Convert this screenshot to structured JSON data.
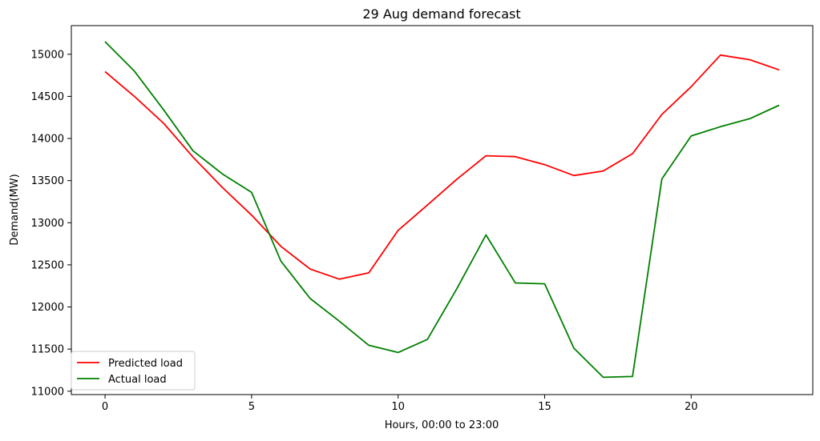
{
  "chart_data": {
    "type": "line",
    "title": "29 Aug demand forecast",
    "xlabel": "Hours, 00:00 to 23:00",
    "ylabel": "Demand(MW)",
    "xlim": [
      -1.15,
      24.15
    ],
    "ylim": [
      10960,
      15340
    ],
    "xticks": [
      0,
      5,
      10,
      15,
      20
    ],
    "yticks": [
      11000,
      11500,
      12000,
      12500,
      13000,
      13500,
      14000,
      14500,
      15000
    ],
    "legend_position": "lower-left",
    "grid": false,
    "x": [
      0,
      1,
      2,
      3,
      4,
      5,
      6,
      7,
      8,
      9,
      10,
      11,
      12,
      13,
      14,
      15,
      16,
      17,
      18,
      19,
      20,
      21,
      22,
      23
    ],
    "series": [
      {
        "name": "Predicted load",
        "color": "#ff0000",
        "values": [
          14795,
          14500,
          14180,
          13780,
          13420,
          13090,
          12720,
          12450,
          12330,
          12405,
          12910,
          13210,
          13515,
          13795,
          13785,
          13690,
          13560,
          13615,
          13820,
          14285,
          14615,
          14990,
          14935,
          14815
        ]
      },
      {
        "name": "Actual load",
        "color": "#008000",
        "values": [
          15150,
          14800,
          14340,
          13855,
          13580,
          13360,
          12545,
          12100,
          11830,
          11545,
          11460,
          11615,
          12215,
          12855,
          12285,
          12275,
          11510,
          11165,
          11175,
          13520,
          14030,
          14140,
          14235,
          14395
        ]
      }
    ]
  }
}
